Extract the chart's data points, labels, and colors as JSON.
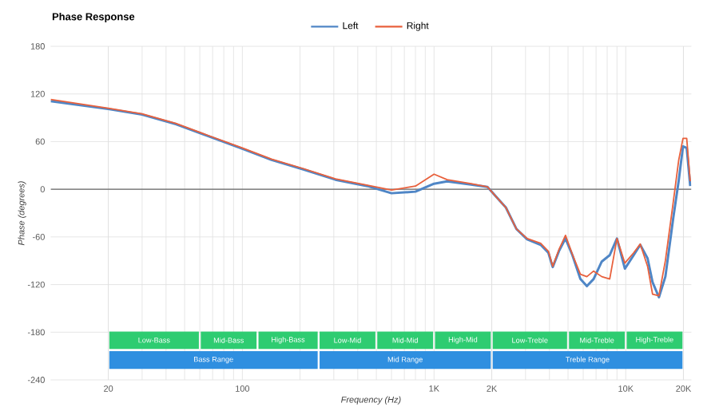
{
  "chart_data": {
    "type": "line",
    "title": "Phase Response",
    "xlabel": "Frequency (Hz)",
    "ylabel": "Phase (degrees)",
    "log": "x",
    "grid": true,
    "legend": "top",
    "xlim": [
      10,
      22000
    ],
    "ylim": [
      -240,
      180
    ],
    "xticks": [
      20,
      100,
      {
        "value": 1000,
        "label": "1K"
      },
      {
        "value": 2000,
        "label": "2K"
      },
      {
        "value": 10000,
        "label": "10K"
      },
      {
        "value": 20000,
        "label": "20K"
      }
    ],
    "yticks": [
      -240,
      -180,
      -120,
      -60,
      0,
      60,
      120,
      180
    ],
    "x": [
      10,
      20,
      30,
      45,
      66,
      100,
      142,
      208,
      306,
      450,
      600,
      800,
      1000,
      1170,
      1560,
      1900,
      2100,
      2370,
      2690,
      3060,
      3600,
      3950,
      4160,
      4500,
      4850,
      5270,
      5800,
      6270,
      6800,
      7500,
      8250,
      9000,
      9900,
      11000,
      11900,
      13000,
      13800,
      14900,
      16100,
      17700,
      18900,
      19900,
      20800,
      21700
    ],
    "series": [
      {
        "name": "Left",
        "color": "#4f86c6",
        "values": [
          111,
          101,
          94,
          82,
          67,
          51,
          37,
          25,
          12,
          4,
          -5,
          -3,
          7,
          10,
          6,
          3,
          -9,
          -23,
          -50,
          -63,
          -70,
          -80,
          -98,
          -77,
          -62,
          -83,
          -113,
          -122,
          -113,
          -91,
          -83,
          -62,
          -100,
          -83,
          -70,
          -87,
          -117,
          -136,
          -110,
          -36,
          11,
          54,
          52,
          4
        ]
      },
      {
        "name": "Right",
        "color": "#e8603c",
        "values": [
          113,
          102,
          95,
          83,
          68,
          52,
          38,
          26,
          13,
          5,
          -1,
          4,
          19,
          12,
          7,
          3,
          -9,
          -23,
          -50,
          -62,
          -68,
          -78,
          -97,
          -75,
          -58,
          -82,
          -107,
          -110,
          -103,
          -110,
          -113,
          -62,
          -93,
          -80,
          -69,
          -97,
          -132,
          -134,
          -90,
          -16,
          37,
          64,
          64,
          10
        ]
      }
    ],
    "ref_lines": [
      {
        "axis": "y",
        "value": 0,
        "color": "#666666"
      }
    ],
    "bands": [
      {
        "axis": "x",
        "from": 20,
        "to": 60,
        "label": "Low-Bass",
        "color": "#2ecc71"
      },
      {
        "axis": "x",
        "from": 60,
        "to": 120,
        "label": "Mid-Bass",
        "color": "#2ecc71"
      },
      {
        "axis": "x",
        "from": 120,
        "to": 250,
        "label": "High-Bass",
        "color": "#2ecc71"
      },
      {
        "axis": "x",
        "from": 250,
        "to": 500,
        "label": "Low-Mid",
        "color": "#2ecc71"
      },
      {
        "axis": "x",
        "from": 500,
        "to": 1000,
        "label": "Mid-Mid",
        "color": "#2ecc71"
      },
      {
        "axis": "x",
        "from": 1000,
        "to": 2000,
        "label": "High-Mid",
        "color": "#2ecc71"
      },
      {
        "axis": "x",
        "from": 2000,
        "to": 5000,
        "label": "Low-Treble",
        "color": "#2ecc71"
      },
      {
        "axis": "x",
        "from": 5000,
        "to": 10000,
        "label": "Mid-Treble",
        "color": "#2ecc71"
      },
      {
        "axis": "x",
        "from": 10000,
        "to": 20000,
        "label": "High-Treble",
        "color": "#2ecc71"
      },
      {
        "axis": "x",
        "from": 20,
        "to": 250,
        "label": "Bass Range",
        "color": "#2f8fe0"
      },
      {
        "axis": "x",
        "from": 250,
        "to": 2000,
        "label": "Mid Range",
        "color": "#2f8fe0"
      },
      {
        "axis": "x",
        "from": 2000,
        "to": 20000,
        "label": "Treble Range",
        "color": "#2f8fe0"
      }
    ]
  }
}
